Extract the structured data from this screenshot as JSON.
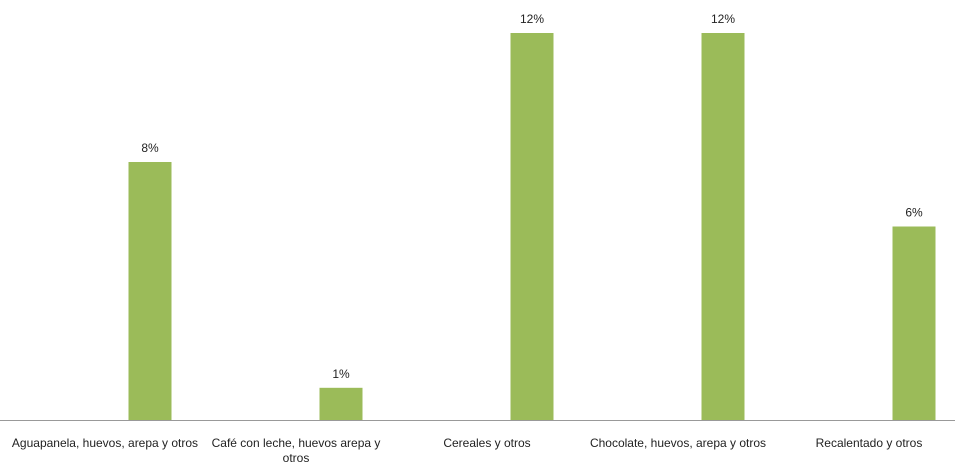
{
  "chart_data": {
    "type": "bar",
    "categories": [
      "Aguapanela, huevos, arepa y otros",
      "Café con leche, huevos arepa y otros",
      "Cereales y otros",
      "Chocolate, huevos, arepa y otros",
      "Recalentado y otros"
    ],
    "values": [
      8,
      1,
      12,
      12,
      6
    ],
    "data_labels": [
      "8%",
      "1%",
      "12%",
      "12%",
      "6%"
    ],
    "title": "",
    "xlabel": "",
    "ylabel": "",
    "ylim": [
      0,
      12
    ],
    "grid": false,
    "legend": "none",
    "bar_color": "#9bbb59",
    "axis_color": "#999999"
  }
}
